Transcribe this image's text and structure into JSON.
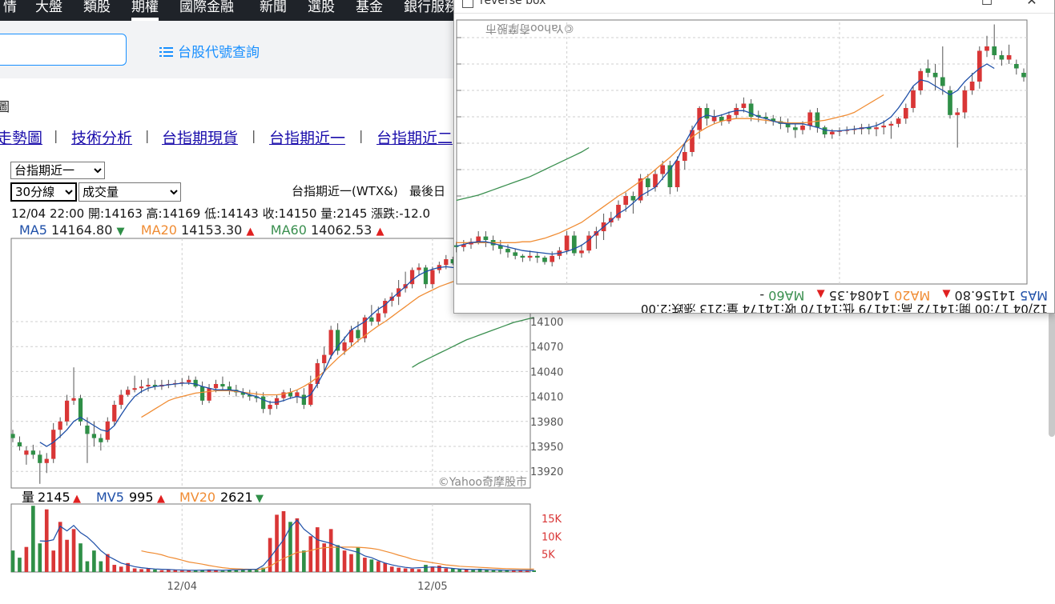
{
  "nav": {
    "items": [
      "情",
      "大盤",
      "類股",
      "期權",
      "國際金融",
      "新聞",
      "選股",
      "基金",
      "銀行服務"
    ],
    "active_index": 3
  },
  "search": {
    "code_lookup_label": "台股代號查詢",
    "icon": "list-icon"
  },
  "breadcrumb": "圖",
  "subnav": {
    "links": [
      "走勢圖",
      "技術分析",
      "台指期現貨",
      "台指期近一",
      "台指期近二"
    ],
    "separator": "|"
  },
  "controls": {
    "contract_select": "台指期近一",
    "period_select": "30分線",
    "indicator_select": "成交量"
  },
  "quote": {
    "title": "台指期近一(WTX&)",
    "last_trade_label": "最後日",
    "ohlc_line": "12/04 22:00  開:14163  高:14169  低:14143  收:14150  量:2145  漲跌:-12.0"
  },
  "ma": {
    "ma5_label": "MA5",
    "ma5_value": "14164.80",
    "ma5_arrow": "▼",
    "ma20_label": "MA20",
    "ma20_value": "14153.30",
    "ma20_arrow": "▲",
    "ma60_label": "MA60",
    "ma60_value": "14062.53",
    "ma60_arrow": "▲"
  },
  "volume": {
    "vol_label": "量",
    "vol_value": "2145",
    "vol_arrow": "▲",
    "mv5_label": "MV5",
    "mv5_value": "995",
    "mv5_arrow": "▲",
    "mv20_label": "MV20",
    "mv20_value": "2621",
    "mv20_arrow": "▼"
  },
  "watermark": "©Yahoo奇摩股市",
  "overlay": {
    "title": "reverse box",
    "ma5_value": "14156.80",
    "ma20_value": "14084.35",
    "ohlc_line": "12/04 17:00  開:14172  高:14179  低:14170  收:14174  量:213  漲跌:2.00"
  },
  "colors": {
    "up": "#d93636",
    "down": "#2f8f47",
    "ma5": "#1e4fa8",
    "ma20": "#f08c33",
    "ma60": "#3a8f4f",
    "nav_bg": "#1f2329",
    "link": "#188fff",
    "arrow_up": "#e02020",
    "arrow_down": "#2f8f47"
  },
  "chart_data": {
    "type": "candlestick",
    "ylim": [
      13900,
      14200
    ],
    "y_ticks": [
      14100,
      14070,
      14040,
      14010,
      13980,
      13950,
      13920
    ],
    "x_labels": [
      "12/04",
      "12/05"
    ],
    "x_label_index": [
      25,
      62
    ],
    "candles": [
      [
        13965,
        13970,
        13955,
        13960
      ],
      [
        13955,
        13962,
        13945,
        13950
      ],
      [
        13940,
        13950,
        13928,
        13945
      ],
      [
        13945,
        13952,
        13935,
        13940
      ],
      [
        13940,
        13945,
        13905,
        13930
      ],
      [
        13930,
        13942,
        13918,
        13935
      ],
      [
        13935,
        13978,
        13930,
        13970
      ],
      [
        13970,
        13985,
        13960,
        13980
      ],
      [
        13980,
        14012,
        13975,
        14005
      ],
      [
        14005,
        14045,
        14000,
        14008
      ],
      [
        14008,
        14012,
        13975,
        13980
      ],
      [
        13975,
        13985,
        13930,
        13965
      ],
      [
        13965,
        13980,
        13950,
        13960
      ],
      [
        13960,
        13965,
        13945,
        13955
      ],
      [
        13958,
        13985,
        13955,
        13980
      ],
      [
        13980,
        14005,
        13975,
        14000
      ],
      [
        14000,
        14018,
        13995,
        14012
      ],
      [
        14012,
        14022,
        14010,
        14018
      ],
      [
        14018,
        14035,
        14015,
        14020
      ],
      [
        14020,
        14030,
        14014,
        14022
      ],
      [
        14022,
        14032,
        14016,
        14024
      ],
      [
        14024,
        14030,
        14018,
        14022
      ],
      [
        14022,
        14030,
        14018,
        14024
      ],
      [
        14024,
        14030,
        14020,
        14025
      ],
      [
        14025,
        14030,
        14021,
        14026
      ],
      [
        14026,
        14032,
        14022,
        14027
      ],
      [
        14027,
        14035,
        14024,
        14030
      ],
      [
        14030,
        14034,
        14020,
        14022
      ],
      [
        14022,
        14028,
        14000,
        14005
      ],
      [
        14005,
        14025,
        14002,
        14020
      ],
      [
        14020,
        14030,
        14015,
        14025
      ],
      [
        14025,
        14034,
        14018,
        14022
      ],
      [
        14022,
        14028,
        14012,
        14018
      ],
      [
        14018,
        14024,
        14010,
        14015
      ],
      [
        14015,
        14020,
        14008,
        14012
      ],
      [
        14012,
        14018,
        14005,
        14010
      ],
      [
        14010,
        14016,
        14003,
        14008
      ],
      [
        14010,
        14015,
        13990,
        13995
      ],
      [
        13995,
        14005,
        13988,
        14000
      ],
      [
        14000,
        14012,
        13995,
        14008
      ],
      [
        14008,
        14018,
        14004,
        14015
      ],
      [
        14015,
        14020,
        14007,
        14010
      ],
      [
        14010,
        14018,
        14002,
        14015
      ],
      [
        14012,
        14020,
        13995,
        14000
      ],
      [
        14000,
        14035,
        13998,
        14025
      ],
      [
        14025,
        14055,
        14020,
        14050
      ],
      [
        14050,
        14070,
        14040,
        14060
      ],
      [
        14060,
        14095,
        14055,
        14090
      ],
      [
        14090,
        14098,
        14060,
        14065
      ],
      [
        14065,
        14082,
        14060,
        14075
      ],
      [
        14075,
        14095,
        14070,
        14090
      ],
      [
        14090,
        14100,
        14075,
        14080
      ],
      [
        14080,
        14108,
        14075,
        14105
      ],
      [
        14105,
        14120,
        14095,
        14100
      ],
      [
        14100,
        14118,
        14096,
        14110
      ],
      [
        14110,
        14128,
        14105,
        14125
      ],
      [
        14125,
        14135,
        14118,
        14130
      ],
      [
        14130,
        14150,
        14120,
        14140
      ],
      [
        14140,
        14160,
        14135,
        14145
      ],
      [
        14145,
        14165,
        14140,
        14162
      ],
      [
        14162,
        14170,
        14155,
        14165
      ],
      [
        14165,
        14168,
        14140,
        14145
      ],
      [
        14145,
        14166,
        14140,
        14162
      ],
      [
        14162,
        14172,
        14158,
        14168
      ],
      [
        14168,
        14180,
        14163,
        14175
      ],
      [
        14175,
        14178,
        14168,
        14170
      ],
      [
        14170,
        14176,
        14164,
        14168
      ],
      [
        14168,
        14174,
        14162,
        14170
      ],
      [
        14170,
        14175,
        14166,
        14168
      ],
      [
        14168,
        14172,
        14160,
        14164
      ],
      [
        14164,
        14170,
        14155,
        14160
      ],
      [
        14160,
        14166,
        14150,
        14156
      ],
      [
        14156,
        14162,
        14145,
        14150
      ],
      [
        14150,
        14158,
        14140,
        14146
      ],
      [
        14146,
        14155,
        14140,
        14152
      ],
      [
        14152,
        14160,
        14148,
        14155
      ],
      [
        14155,
        14163,
        14150,
        14158
      ],
      [
        14158,
        14164,
        14152,
        14156
      ]
    ],
    "ma5": [
      null,
      null,
      null,
      null,
      13955,
      13950,
      13955,
      13962,
      13970,
      13980,
      13985,
      13980,
      13975,
      13970,
      13968,
      13975,
      13988,
      14000,
      14010,
      14016,
      14020,
      14022,
      14023,
      14024,
      14025,
      14026,
      14026,
      14025,
      14022,
      14020,
      14018,
      14018,
      14018,
      14017,
      14015,
      14012,
      14010,
      14006,
      14003,
      14003,
      14005,
      14008,
      14010,
      14008,
      14012,
      14025,
      14040,
      14058,
      14070,
      14080,
      14090,
      14095,
      14100,
      14108,
      14115,
      14120,
      14128,
      14135,
      14142,
      14150,
      14156,
      14160,
      14163,
      14165,
      14166,
      14165,
      14164,
      14163,
      14162,
      14160,
      14158,
      14156,
      14154,
      14152,
      14152,
      14153,
      14155,
      14157
    ],
    "ma20": [
      null,
      null,
      null,
      null,
      null,
      null,
      null,
      null,
      null,
      null,
      null,
      null,
      null,
      null,
      null,
      null,
      null,
      null,
      null,
      13985,
      13990,
      13995,
      14000,
      14005,
      14008,
      14010,
      14012,
      14014,
      14015,
      14016,
      14017,
      14017,
      14017,
      14016,
      14015,
      14014,
      14013,
      14012,
      14012,
      14012,
      14013,
      14015,
      14018,
      14022,
      14027,
      14033,
      14040,
      14048,
      14056,
      14063,
      14070,
      14077,
      14083,
      14089,
      14095,
      14100,
      14106,
      14112,
      14118,
      14124,
      14130,
      14134,
      14138,
      14142,
      14145,
      14148,
      14150,
      14152,
      14152,
      14153,
      14153,
      14153,
      14153,
      14153,
      14153,
      14153,
      14153,
      14153
    ],
    "ma60": [
      null,
      null,
      null,
      null,
      null,
      null,
      null,
      null,
      null,
      null,
      null,
      null,
      null,
      null,
      null,
      null,
      null,
      null,
      null,
      null,
      null,
      null,
      null,
      null,
      null,
      null,
      null,
      null,
      null,
      null,
      null,
      null,
      null,
      null,
      null,
      null,
      null,
      null,
      null,
      null,
      null,
      null,
      null,
      null,
      null,
      null,
      null,
      null,
      null,
      null,
      null,
      null,
      null,
      null,
      null,
      null,
      null,
      null,
      null,
      14045,
      14050,
      14054,
      14058,
      14062,
      14066,
      14070,
      14074,
      14078,
      14081,
      14084,
      14087,
      14090,
      14093,
      14096,
      14099,
      14101,
      14103,
      14105
    ],
    "volume_ylim": [
      0,
      19000
    ],
    "volume_ticks": [
      "15K",
      "10K",
      "5K"
    ],
    "volume_tick_values": [
      15000,
      10000,
      5000
    ],
    "volumes": [
      6000,
      4000,
      7000,
      18500,
      8000,
      17500,
      6000,
      14000,
      9000,
      12000,
      8000,
      3000,
      6000,
      3000,
      5000,
      2000,
      1500,
      2500,
      1000,
      800,
      900,
      700,
      500,
      600,
      700,
      400,
      500,
      450,
      600,
      700,
      500,
      400,
      600,
      500,
      700,
      800,
      600,
      1200,
      9500,
      16000,
      17000,
      14000,
      15000,
      6000,
      10000,
      12500,
      8000,
      12000,
      7500,
      6000,
      5000,
      7000,
      4000,
      3500,
      3000,
      2500,
      1500,
      1200,
      1000,
      900,
      800,
      2000,
      1500,
      1800,
      1000,
      900,
      800,
      700,
      600,
      900,
      700,
      500,
      400,
      600,
      500,
      500,
      400,
      450
    ],
    "mv5": [
      null,
      null,
      null,
      null,
      8700,
      8600,
      9000,
      12800,
      11500,
      13000,
      11000,
      9800,
      8000,
      6000,
      4500,
      3500,
      2500,
      2000,
      1500,
      1200,
      1000,
      850,
      750,
      700,
      600,
      550,
      500,
      500,
      520,
      550,
      520,
      500,
      550,
      600,
      650,
      700,
      750,
      1800,
      4000,
      6500,
      9000,
      12500,
      14500,
      12000,
      10500,
      9000,
      8500,
      8000,
      7200,
      6500,
      6000,
      5500,
      4500,
      4000,
      3200,
      2500,
      2000,
      1600,
      1300,
      1100,
      1200,
      1300,
      1400,
      1300,
      1200,
      1000,
      850,
      750,
      700,
      700,
      650,
      600,
      550,
      500,
      500,
      480,
      450,
      440
    ],
    "mv20": [
      null,
      null,
      null,
      null,
      null,
      null,
      null,
      null,
      null,
      null,
      null,
      null,
      null,
      null,
      null,
      null,
      null,
      null,
      null,
      5900,
      5500,
      5200,
      4800,
      4200,
      3800,
      3300,
      2800,
      2500,
      2200,
      1800,
      1500,
      1200,
      1000,
      900,
      800,
      750,
      700,
      900,
      1600,
      2800,
      3800,
      4600,
      5500,
      5600,
      6000,
      6500,
      6800,
      6900,
      6950,
      6950,
      6950,
      6900,
      6800,
      6600,
      6300,
      5800,
      5300,
      4700,
      4200,
      3600,
      3200,
      2900,
      2600,
      2300,
      2000,
      1800,
      1600,
      1500,
      1400,
      1300,
      1200,
      1100,
      1000,
      950,
      900,
      850,
      800,
      800
    ]
  }
}
